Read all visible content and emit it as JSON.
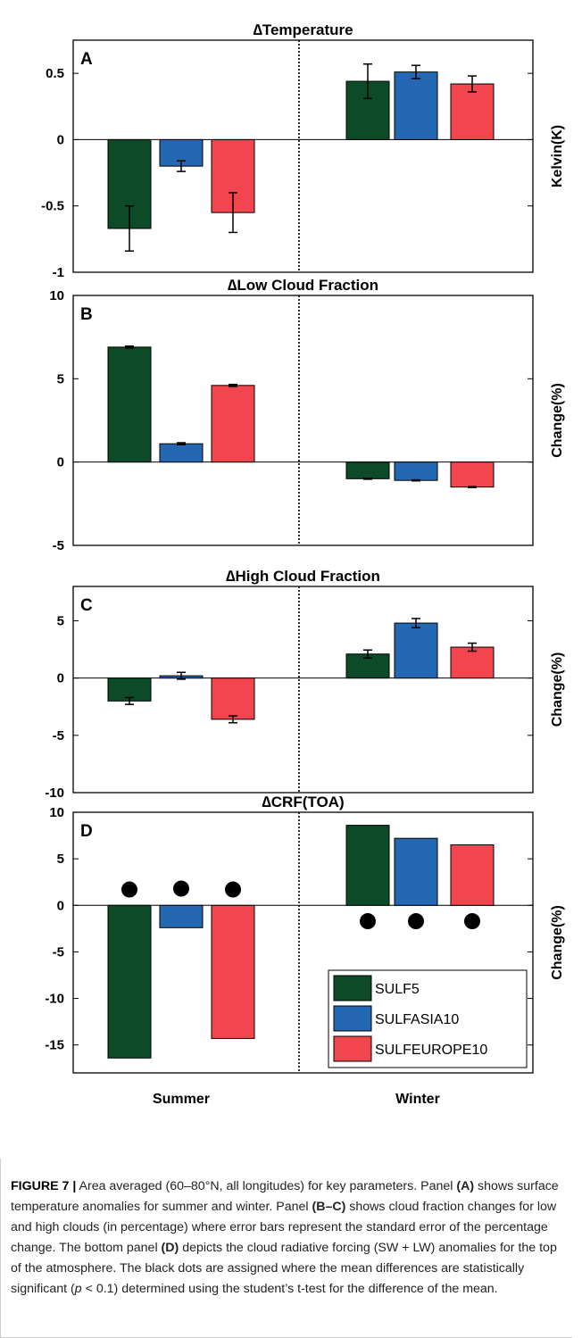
{
  "colors": {
    "SULF5": "#0d4b28",
    "SULFASIA10": "#2468b3",
    "SULFEUROPE10": "#f2454d"
  },
  "chart_data": [
    {
      "type": "bar",
      "panel_label": "A",
      "title": "∆Temperature",
      "ylabel": "Kelvin(K)",
      "categories": [
        "Summer",
        "Winter"
      ],
      "ylim": [
        -1,
        0.75
      ],
      "yticks": [
        -1,
        -0.5,
        0,
        0.5
      ],
      "ytick_labels": [
        "-1",
        "-0.5",
        "0",
        "0.5"
      ],
      "series": [
        {
          "name": "SULF5",
          "values": [
            -0.67,
            0.44
          ],
          "errors": [
            0.17,
            0.13
          ]
        },
        {
          "name": "SULFASIA10",
          "values": [
            -0.2,
            0.51
          ],
          "errors": [
            0.04,
            0.05
          ]
        },
        {
          "name": "SULFEUROPE10",
          "values": [
            -0.55,
            0.42
          ],
          "errors": [
            0.15,
            0.06
          ]
        }
      ]
    },
    {
      "type": "bar",
      "panel_label": "B",
      "title": "∆Low Cloud Fraction",
      "ylabel": "Change(%)",
      "categories": [
        "Summer",
        "Winter"
      ],
      "ylim": [
        -5,
        10
      ],
      "yticks": [
        -5,
        0,
        5,
        10
      ],
      "ytick_labels": [
        "-5",
        "0",
        "5",
        "10"
      ],
      "series": [
        {
          "name": "SULF5",
          "values": [
            6.9,
            -1.0
          ],
          "errors": [
            0.06,
            0.03
          ]
        },
        {
          "name": "SULFASIA10",
          "values": [
            1.1,
            -1.1
          ],
          "errors": [
            0.06,
            0.03
          ]
        },
        {
          "name": "SULFEUROPE10",
          "values": [
            4.6,
            -1.5
          ],
          "errors": [
            0.06,
            0.03
          ]
        }
      ]
    },
    {
      "type": "bar",
      "panel_label": "C",
      "title": "∆High Cloud Fraction",
      "ylabel": "Change(%)",
      "categories": [
        "Summer",
        "Winter"
      ],
      "ylim": [
        -10,
        8
      ],
      "yticks": [
        -10,
        -5,
        0,
        5
      ],
      "ytick_labels": [
        "-10",
        "-5",
        "0",
        "5"
      ],
      "series": [
        {
          "name": "SULF5",
          "values": [
            -2.0,
            2.1
          ],
          "errors": [
            0.3,
            0.35
          ]
        },
        {
          "name": "SULFASIA10",
          "values": [
            0.2,
            4.8
          ],
          "errors": [
            0.3,
            0.4
          ]
        },
        {
          "name": "SULFEUROPE10",
          "values": [
            -3.6,
            2.7
          ],
          "errors": [
            0.3,
            0.35
          ]
        }
      ]
    },
    {
      "type": "bar",
      "panel_label": "D",
      "title": "∆CRF(TOA)",
      "ylabel": "Change(%)",
      "categories": [
        "Summer",
        "Winter"
      ],
      "ylim": [
        -18,
        10
      ],
      "yticks": [
        -15,
        -10,
        -5,
        0,
        5,
        10
      ],
      "ytick_labels": [
        "-15",
        "-10",
        "-5",
        "0",
        "5",
        "10"
      ],
      "series": [
        {
          "name": "SULF5",
          "values": [
            -16.4,
            8.6
          ]
        },
        {
          "name": "SULFASIA10",
          "values": [
            -2.4,
            7.2
          ]
        },
        {
          "name": "SULFEUROPE10",
          "values": [
            -14.3,
            6.5
          ]
        }
      ],
      "significance_markers": {
        "Summer": {
          "SULF5": 1.7,
          "SULFASIA10": 1.8,
          "SULFEUROPE10": 1.7
        },
        "Winter": {
          "SULF5": -1.7,
          "SULFASIA10": -1.7,
          "SULFEUROPE10": -1.7
        }
      },
      "legend": {
        "entries": [
          "SULF5",
          "SULFASIA10",
          "SULFEUROPE10"
        ],
        "placement": "bottom-right"
      }
    }
  ],
  "caption": {
    "lead": "FIGURE 7 |",
    "s1": " Area averaged (60–80°N, all longitudes) for key parameters. Panel ",
    "b1": "(A)",
    "s2": " shows surface temperature anomalies for summer and winter. Panel ",
    "b2": "(B–C)",
    "s3": " shows cloud fraction changes for low and high clouds (in percentage) where error bars represent the standard error of the percentage change. The bottom panel ",
    "b3": "(D)",
    "s4": " depicts the cloud radiative forcing (SW + LW) anomalies for the top of the atmosphere. The black dots are assigned where the mean differences are statistically significant (",
    "i1": "p",
    "s5": " < 0.1) determined using the student’s t-test for the difference of the mean."
  }
}
